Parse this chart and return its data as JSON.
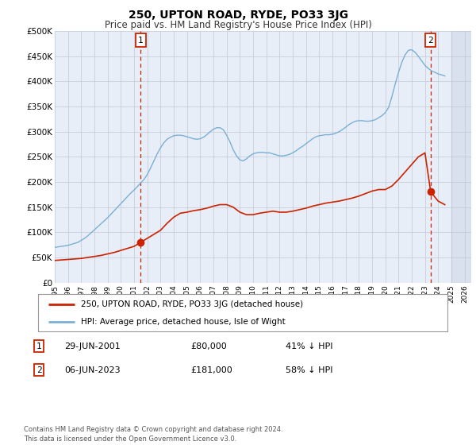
{
  "title": "250, UPTON ROAD, RYDE, PO33 3JG",
  "subtitle": "Price paid vs. HM Land Registry's House Price Index (HPI)",
  "hpi_color": "#7bafd4",
  "price_color": "#cc2200",
  "annotation_color": "#cc2200",
  "plot_bg_color": "#e8eef8",
  "ylim": [
    0,
    500000
  ],
  "yticks": [
    0,
    50000,
    100000,
    150000,
    200000,
    250000,
    300000,
    350000,
    400000,
    450000,
    500000
  ],
  "ytick_labels": [
    "£0",
    "£50K",
    "£100K",
    "£150K",
    "£200K",
    "£250K",
    "£300K",
    "£350K",
    "£400K",
    "£450K",
    "£500K"
  ],
  "xlim_start": 1995.0,
  "xlim_end": 2026.5,
  "xtick_years": [
    1995,
    1996,
    1997,
    1998,
    1999,
    2000,
    2001,
    2002,
    2003,
    2004,
    2005,
    2006,
    2007,
    2008,
    2009,
    2010,
    2011,
    2012,
    2013,
    2014,
    2015,
    2016,
    2017,
    2018,
    2019,
    2020,
    2021,
    2022,
    2023,
    2024,
    2025,
    2026
  ],
  "sale1_date": 2001.49,
  "sale1_price": 80000,
  "sale1_label": "1",
  "sale2_date": 2023.43,
  "sale2_price": 181000,
  "sale2_label": "2",
  "legend_line1": "250, UPTON ROAD, RYDE, PO33 3JG (detached house)",
  "legend_line2": "HPI: Average price, detached house, Isle of Wight",
  "table_row1": [
    "1",
    "29-JUN-2001",
    "£80,000",
    "41% ↓ HPI"
  ],
  "table_row2": [
    "2",
    "06-JUN-2023",
    "£181,000",
    "58% ↓ HPI"
  ],
  "footer": "Contains HM Land Registry data © Crown copyright and database right 2024.\nThis data is licensed under the Open Government Licence v3.0.",
  "hpi_x": [
    1995.0,
    1995.25,
    1995.5,
    1995.75,
    1996.0,
    1996.25,
    1996.5,
    1996.75,
    1997.0,
    1997.25,
    1997.5,
    1997.75,
    1998.0,
    1998.25,
    1998.5,
    1998.75,
    1999.0,
    1999.25,
    1999.5,
    1999.75,
    2000.0,
    2000.25,
    2000.5,
    2000.75,
    2001.0,
    2001.25,
    2001.5,
    2001.75,
    2002.0,
    2002.25,
    2002.5,
    2002.75,
    2003.0,
    2003.25,
    2003.5,
    2003.75,
    2004.0,
    2004.25,
    2004.5,
    2004.75,
    2005.0,
    2005.25,
    2005.5,
    2005.75,
    2006.0,
    2006.25,
    2006.5,
    2006.75,
    2007.0,
    2007.25,
    2007.5,
    2007.75,
    2008.0,
    2008.25,
    2008.5,
    2008.75,
    2009.0,
    2009.25,
    2009.5,
    2009.75,
    2010.0,
    2010.25,
    2010.5,
    2010.75,
    2011.0,
    2011.25,
    2011.5,
    2011.75,
    2012.0,
    2012.25,
    2012.5,
    2012.75,
    2013.0,
    2013.25,
    2013.5,
    2013.75,
    2014.0,
    2014.25,
    2014.5,
    2014.75,
    2015.0,
    2015.25,
    2015.5,
    2015.75,
    2016.0,
    2016.25,
    2016.5,
    2016.75,
    2017.0,
    2017.25,
    2017.5,
    2017.75,
    2018.0,
    2018.25,
    2018.5,
    2018.75,
    2019.0,
    2019.25,
    2019.5,
    2019.75,
    2020.0,
    2020.25,
    2020.5,
    2020.75,
    2021.0,
    2021.25,
    2021.5,
    2021.75,
    2022.0,
    2022.25,
    2022.5,
    2022.75,
    2023.0,
    2023.25,
    2023.5,
    2023.75,
    2024.0,
    2024.25,
    2024.5
  ],
  "hpi_y": [
    70000,
    71000,
    72000,
    73000,
    74000,
    76000,
    78000,
    80000,
    84000,
    88000,
    93000,
    99000,
    105000,
    111000,
    117000,
    123000,
    129000,
    136000,
    143000,
    150000,
    157000,
    164000,
    171000,
    178000,
    184000,
    191000,
    198000,
    205000,
    215000,
    228000,
    242000,
    256000,
    268000,
    278000,
    285000,
    289000,
    292000,
    293000,
    293000,
    292000,
    290000,
    288000,
    286000,
    285000,
    286000,
    289000,
    294000,
    300000,
    305000,
    308000,
    308000,
    304000,
    293000,
    280000,
    264000,
    252000,
    244000,
    242000,
    246000,
    252000,
    256000,
    258000,
    259000,
    259000,
    258000,
    258000,
    256000,
    254000,
    252000,
    252000,
    253000,
    255000,
    258000,
    262000,
    267000,
    271000,
    276000,
    281000,
    286000,
    290000,
    292000,
    293000,
    294000,
    294000,
    295000,
    297000,
    300000,
    304000,
    309000,
    314000,
    318000,
    321000,
    322000,
    322000,
    321000,
    321000,
    322000,
    324000,
    328000,
    332000,
    338000,
    348000,
    370000,
    395000,
    418000,
    438000,
    453000,
    462000,
    463000,
    458000,
    450000,
    441000,
    432000,
    426000,
    421000,
    418000,
    415000,
    413000,
    411000
  ],
  "price_x": [
    1995.0,
    1995.5,
    1996.0,
    1996.5,
    1997.0,
    1997.5,
    1998.0,
    1998.5,
    1999.0,
    1999.5,
    2000.0,
    2000.5,
    2001.0,
    2001.49,
    2002.0,
    2002.5,
    2003.0,
    2003.5,
    2004.0,
    2004.5,
    2005.0,
    2005.5,
    2006.0,
    2006.5,
    2007.0,
    2007.5,
    2008.0,
    2008.5,
    2009.0,
    2009.5,
    2010.0,
    2010.5,
    2011.0,
    2011.5,
    2012.0,
    2012.5,
    2013.0,
    2013.5,
    2014.0,
    2014.5,
    2015.0,
    2015.5,
    2016.0,
    2016.5,
    2017.0,
    2017.5,
    2018.0,
    2018.5,
    2019.0,
    2019.5,
    2020.0,
    2020.5,
    2021.0,
    2021.5,
    2022.0,
    2022.5,
    2023.0,
    2023.43,
    2023.75,
    2024.0,
    2024.5
  ],
  "price_y": [
    44000,
    45000,
    46000,
    47000,
    48000,
    50000,
    52000,
    54000,
    57000,
    60000,
    64000,
    68000,
    72000,
    80000,
    88000,
    96000,
    104000,
    118000,
    130000,
    138000,
    140000,
    143000,
    145000,
    148000,
    152000,
    155000,
    155000,
    150000,
    140000,
    135000,
    135000,
    138000,
    140000,
    142000,
    140000,
    140000,
    142000,
    145000,
    148000,
    152000,
    155000,
    158000,
    160000,
    162000,
    165000,
    168000,
    172000,
    177000,
    182000,
    185000,
    185000,
    192000,
    205000,
    220000,
    235000,
    250000,
    258000,
    181000,
    170000,
    162000,
    155000
  ]
}
